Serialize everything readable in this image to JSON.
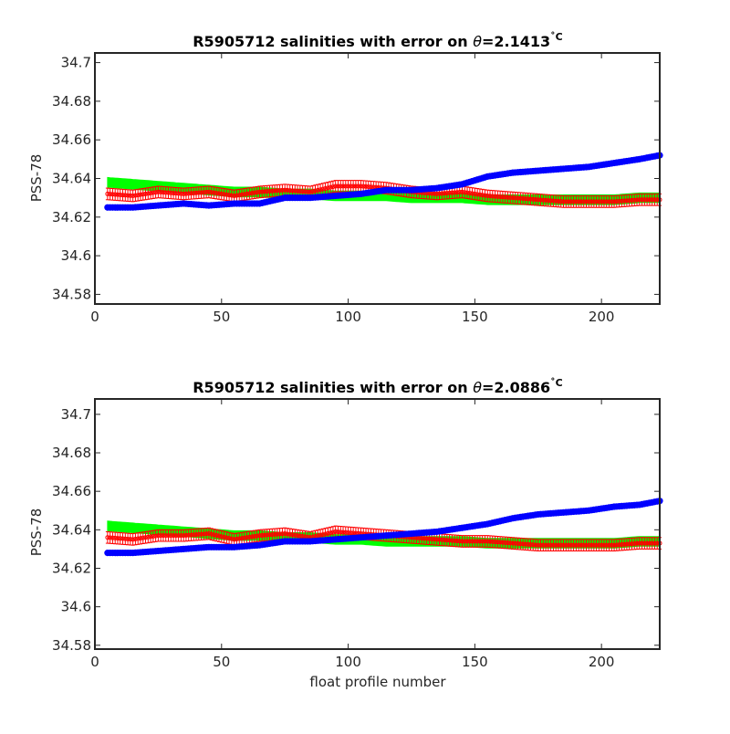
{
  "chart_data": [
    {
      "type": "scatter",
      "title": "R5905712 salinities with error on θ=2.1413˚C",
      "title_prefix": "R5905712 salinities with error on ",
      "title_theta": "θ",
      "title_value": "=2.1413",
      "title_unit": "˚C",
      "xlabel": "",
      "ylabel": "PSS-78",
      "xlim": [
        0,
        223
      ],
      "ylim": [
        34.575,
        34.705
      ],
      "xticks": [
        0,
        50,
        100,
        150,
        200
      ],
      "yticks": [
        34.58,
        34.6,
        34.62,
        34.64,
        34.66,
        34.68,
        34.7
      ],
      "ytick_labels": [
        "34.58",
        "34.6",
        "34.62",
        "34.64",
        "34.66",
        "34.68",
        "34.7"
      ],
      "colors": {
        "band": "#00ff00",
        "errorbar": "#ff0000",
        "dots": "#0000ff"
      },
      "x": [
        5,
        15,
        25,
        35,
        45,
        55,
        65,
        75,
        85,
        95,
        105,
        115,
        125,
        135,
        145,
        155,
        165,
        175,
        185,
        195,
        205,
        215,
        223
      ],
      "series": [
        {
          "legend": "",
          "style": "filled-band",
          "values": [
            34.638,
            34.637,
            34.636,
            34.635,
            34.634,
            34.633,
            34.633,
            34.632,
            34.632,
            34.631,
            34.631,
            34.631,
            34.63,
            34.63,
            34.63,
            34.629,
            34.629,
            34.629,
            34.629,
            34.629,
            34.629,
            34.63,
            34.63
          ]
        },
        {
          "legend": "",
          "style": "errorbar",
          "values": [
            34.632,
            34.631,
            34.633,
            34.632,
            34.633,
            34.631,
            34.633,
            34.634,
            34.633,
            34.636,
            34.636,
            34.635,
            34.633,
            34.632,
            34.633,
            34.631,
            34.63,
            34.629,
            34.628,
            34.628,
            34.628,
            34.629,
            34.629
          ],
          "error": 0.003
        },
        {
          "legend": "",
          "style": "dots",
          "values": [
            34.625,
            34.625,
            34.626,
            34.627,
            34.626,
            34.627,
            34.627,
            34.63,
            34.63,
            34.631,
            34.632,
            34.634,
            34.634,
            34.635,
            34.637,
            34.641,
            34.643,
            34.644,
            34.645,
            34.646,
            34.648,
            34.65,
            34.652
          ]
        }
      ]
    },
    {
      "type": "scatter",
      "title": "R5905712 salinities with error on θ=2.0886˚C",
      "title_prefix": "R5905712 salinities with error on ",
      "title_theta": "θ",
      "title_value": "=2.0886",
      "title_unit": "˚C",
      "xlabel": "float profile number",
      "ylabel": "PSS-78",
      "xlim": [
        0,
        223
      ],
      "ylim": [
        34.578,
        34.708
      ],
      "xticks": [
        0,
        50,
        100,
        150,
        200
      ],
      "yticks": [
        34.58,
        34.6,
        34.62,
        34.64,
        34.66,
        34.68,
        34.7
      ],
      "ytick_labels": [
        "34.58",
        "34.6",
        "34.62",
        "34.64",
        "34.66",
        "34.68",
        "34.7"
      ],
      "colors": {
        "band": "#00ff00",
        "errorbar": "#ff0000",
        "dots": "#0000ff"
      },
      "x": [
        5,
        15,
        25,
        35,
        45,
        55,
        65,
        75,
        85,
        95,
        105,
        115,
        125,
        135,
        145,
        155,
        165,
        175,
        185,
        195,
        205,
        215,
        223
      ],
      "series": [
        {
          "legend": "",
          "style": "filled-band",
          "values": [
            34.642,
            34.641,
            34.64,
            34.639,
            34.638,
            34.637,
            34.637,
            34.636,
            34.636,
            34.635,
            34.635,
            34.634,
            34.634,
            34.634,
            34.634,
            34.633,
            34.633,
            34.633,
            34.633,
            34.633,
            34.633,
            34.634,
            34.634
          ]
        },
        {
          "legend": "",
          "style": "errorbar",
          "values": [
            34.636,
            34.635,
            34.637,
            34.637,
            34.638,
            34.635,
            34.637,
            34.638,
            34.636,
            34.639,
            34.638,
            34.637,
            34.636,
            34.635,
            34.634,
            34.634,
            34.633,
            34.632,
            34.632,
            34.632,
            34.632,
            34.633,
            34.633
          ],
          "error": 0.003
        },
        {
          "legend": "",
          "style": "dots",
          "values": [
            34.628,
            34.628,
            34.629,
            34.63,
            34.631,
            34.631,
            34.632,
            34.634,
            34.634,
            34.635,
            34.636,
            34.637,
            34.638,
            34.639,
            34.641,
            34.643,
            34.646,
            34.648,
            34.649,
            34.65,
            34.652,
            34.653,
            34.655
          ]
        }
      ]
    }
  ]
}
